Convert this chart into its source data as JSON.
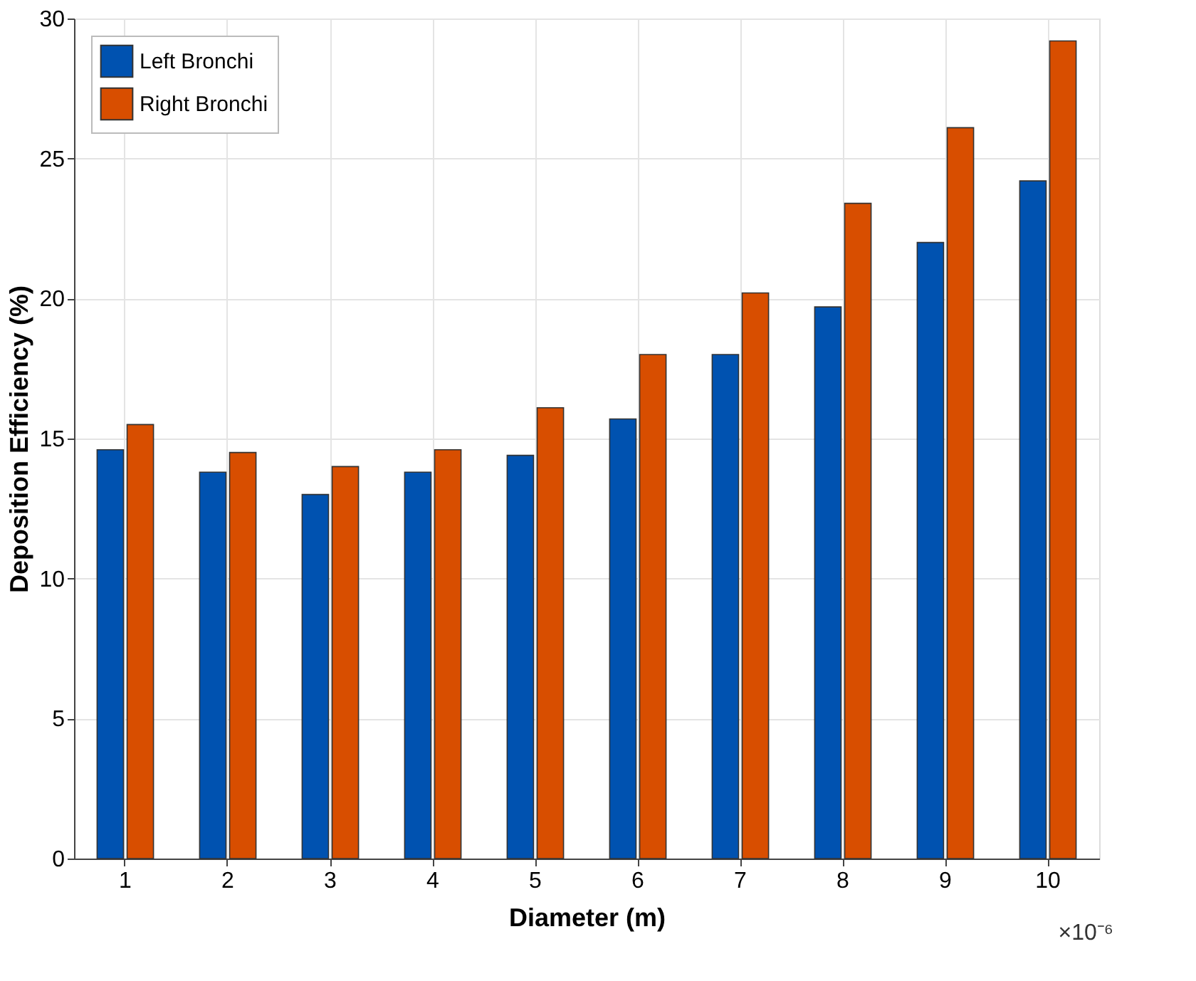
{
  "chart_data": {
    "type": "bar",
    "xlabel": "Diameter (m)",
    "ylabel": "Deposition Efficiency (%)",
    "categories": [
      "1",
      "2",
      "3",
      "4",
      "5",
      "6",
      "7",
      "8",
      "9",
      "10"
    ],
    "series": [
      {
        "name": "Left Bronchi",
        "color": "#0052b0",
        "values": [
          14.6,
          13.8,
          13.0,
          13.8,
          14.4,
          15.7,
          18.0,
          19.7,
          22.0,
          24.2
        ]
      },
      {
        "name": "Right Bronchi",
        "color": "#d84e00",
        "values": [
          15.5,
          14.5,
          14.0,
          14.6,
          16.1,
          18.0,
          20.2,
          23.4,
          26.1,
          29.2
        ]
      }
    ],
    "ylim": [
      0,
      30
    ],
    "yticks": [
      0,
      5,
      10,
      15,
      20,
      25,
      30
    ],
    "grid": true,
    "legend": "top left",
    "annotations": [
      "×10⁻⁶"
    ]
  }
}
